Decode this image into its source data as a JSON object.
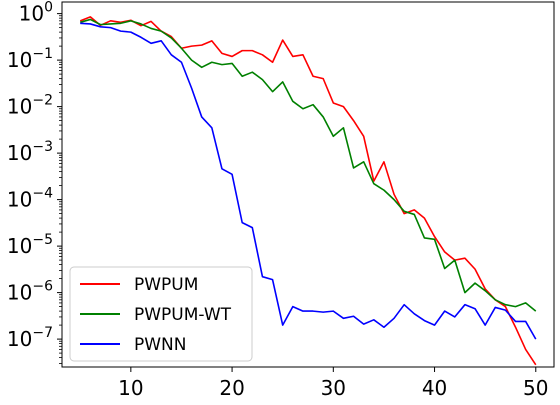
{
  "chart_data": {
    "type": "line",
    "title": "",
    "xlabel": "",
    "ylabel": "",
    "x_ticks": [
      10,
      20,
      30,
      40,
      50
    ],
    "y_scale": "log",
    "y_ticks": [
      {
        "exp": 0,
        "label": "10",
        "sup": "0"
      },
      {
        "exp": -1,
        "label": "10",
        "sup": "−1"
      },
      {
        "exp": -2,
        "label": "10",
        "sup": "−2"
      },
      {
        "exp": -3,
        "label": "10",
        "sup": "−3"
      },
      {
        "exp": -4,
        "label": "10",
        "sup": "−4"
      },
      {
        "exp": -5,
        "label": "10",
        "sup": "−5"
      },
      {
        "exp": -6,
        "label": "10",
        "sup": "−6"
      },
      {
        "exp": -7,
        "label": "10",
        "sup": "−7"
      }
    ],
    "xlim": [
      3.2,
      51.8
    ],
    "ylim_exp": [
      -7.6,
      0.25
    ],
    "grid": false,
    "legend_position": "lower-left",
    "series": [
      {
        "name": "PWPUM",
        "color": "#ff0000",
        "x": [
          5,
          6,
          7,
          8,
          9,
          10,
          11,
          12,
          13,
          14,
          15,
          16,
          17,
          18,
          19,
          20,
          21,
          22,
          23,
          24,
          25,
          26,
          27,
          28,
          29,
          30,
          31,
          32,
          33,
          34,
          35,
          36,
          37,
          38,
          39,
          40,
          41,
          42,
          43,
          44,
          45,
          46,
          47,
          48,
          49,
          50
        ],
        "y": [
          0.7,
          0.85,
          0.56,
          0.7,
          0.65,
          0.72,
          0.55,
          0.68,
          0.42,
          0.32,
          0.18,
          0.2,
          0.21,
          0.26,
          0.14,
          0.12,
          0.16,
          0.16,
          0.13,
          0.09,
          0.27,
          0.12,
          0.13,
          0.045,
          0.04,
          0.012,
          0.01,
          0.005,
          0.0023,
          0.00025,
          0.00065,
          0.00013,
          5e-05,
          6e-05,
          4e-05,
          1.6e-05,
          7.5e-06,
          5e-06,
          5.5e-06,
          3.2e-06,
          1.2e-06,
          7e-07,
          5e-07,
          1.8e-07,
          6e-08,
          2.8e-08
        ]
      },
      {
        "name": "PWPUM-WT",
        "color": "#008000",
        "x": [
          5,
          6,
          7,
          8,
          9,
          10,
          11,
          12,
          13,
          14,
          15,
          16,
          17,
          18,
          19,
          20,
          21,
          22,
          23,
          24,
          25,
          26,
          27,
          28,
          29,
          30,
          31,
          32,
          33,
          34,
          35,
          36,
          37,
          38,
          39,
          40,
          41,
          42,
          43,
          44,
          45,
          46,
          47,
          48,
          49,
          50
        ],
        "y": [
          0.65,
          0.75,
          0.58,
          0.6,
          0.62,
          0.7,
          0.6,
          0.48,
          0.42,
          0.3,
          0.18,
          0.1,
          0.07,
          0.09,
          0.08,
          0.085,
          0.045,
          0.055,
          0.038,
          0.021,
          0.034,
          0.013,
          0.009,
          0.011,
          0.006,
          0.0023,
          0.0035,
          0.00048,
          0.00065,
          0.00022,
          0.00016,
          0.0001,
          5.6e-05,
          4.8e-05,
          1.5e-05,
          1.4e-05,
          3.3e-06,
          5e-06,
          1e-06,
          1.6e-06,
          1.1e-06,
          7e-07,
          5.5e-07,
          5e-07,
          6e-07,
          4e-07
        ]
      },
      {
        "name": "PWNN",
        "color": "#0000ff",
        "x": [
          5,
          6,
          7,
          8,
          9,
          10,
          11,
          12,
          13,
          14,
          15,
          16,
          17,
          18,
          19,
          20,
          21,
          22,
          23,
          24,
          25,
          26,
          27,
          28,
          29,
          30,
          31,
          32,
          33,
          34,
          35,
          36,
          37,
          38,
          39,
          40,
          41,
          42,
          43,
          44,
          45,
          46,
          47,
          48,
          49,
          50
        ],
        "y": [
          0.62,
          0.6,
          0.52,
          0.5,
          0.42,
          0.4,
          0.31,
          0.23,
          0.26,
          0.13,
          0.09,
          0.025,
          0.006,
          0.0035,
          0.00046,
          0.00035,
          3.2e-05,
          2.5e-05,
          2.2e-06,
          1.9e-06,
          2e-07,
          5e-07,
          4e-07,
          4e-07,
          3.8e-07,
          4e-07,
          2.8e-07,
          3.1e-07,
          2.1e-07,
          2.6e-07,
          1.8e-07,
          2.8e-07,
          5.5e-07,
          3.5e-07,
          2.5e-07,
          2e-07,
          4e-07,
          3e-07,
          5.5e-07,
          4.5e-07,
          2e-07,
          4.8e-07,
          4.2e-07,
          2.4e-07,
          2.4e-07,
          1e-07
        ]
      }
    ]
  }
}
